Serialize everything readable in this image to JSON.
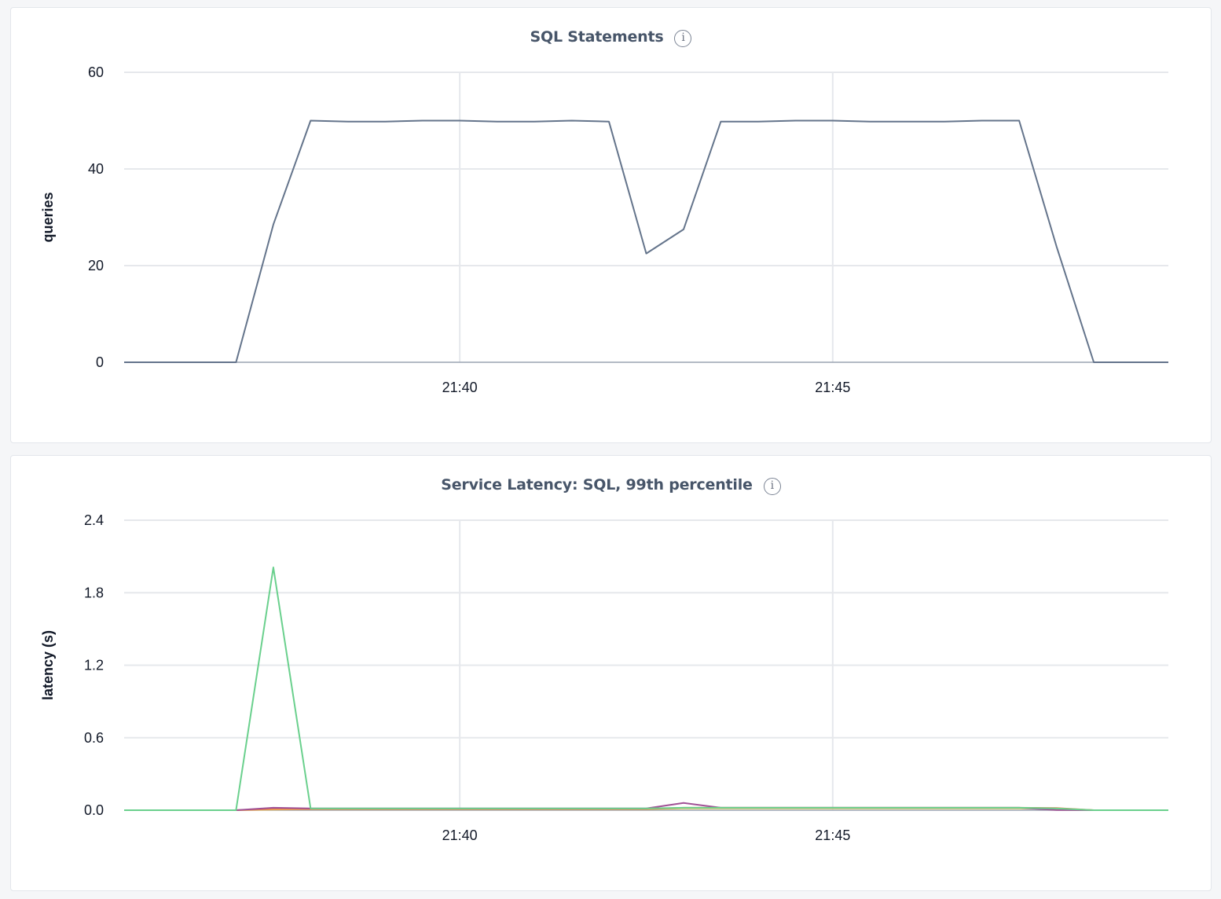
{
  "chart_data": [
    {
      "type": "line",
      "title": "SQL Statements",
      "info_icon": "info-circle-icon",
      "ylabel": "queries",
      "xlabel": "",
      "ylim": [
        0,
        60
      ],
      "yticks": [
        0,
        20,
        40,
        60
      ],
      "ytick_labels": [
        "0",
        "20",
        "40",
        "60"
      ],
      "xlim": [
        "21:35:30",
        "21:49:30"
      ],
      "xticks": [
        "21:40",
        "21:45"
      ],
      "xtick_labels": [
        "21:40",
        "21:45"
      ],
      "grid": true,
      "legend": "none",
      "series": [
        {
          "color": "#64748b",
          "x": [
            "21:35:30",
            "21:36:00",
            "21:36:30",
            "21:37:00",
            "21:37:30",
            "21:38:00",
            "21:38:30",
            "21:39:00",
            "21:39:30",
            "21:40:00",
            "21:40:30",
            "21:41:00",
            "21:41:30",
            "21:42:00",
            "21:42:30",
            "21:43:00",
            "21:43:30",
            "21:44:00",
            "21:44:30",
            "21:45:00",
            "21:45:30",
            "21:46:00",
            "21:46:30",
            "21:47:00",
            "21:47:30",
            "21:48:00",
            "21:48:30",
            "21:49:00",
            "21:49:30"
          ],
          "y": [
            0,
            0,
            0,
            0,
            28.5,
            50,
            49.8,
            49.8,
            50,
            50,
            49.8,
            49.8,
            50,
            49.8,
            22.5,
            27.5,
            49.8,
            49.8,
            50,
            50,
            49.8,
            49.8,
            49.8,
            50,
            50,
            24,
            0,
            0,
            0
          ]
        }
      ]
    },
    {
      "type": "line",
      "title": "Service Latency: SQL, 99th percentile",
      "info_icon": "info-circle-icon",
      "ylabel": "latency (s)",
      "xlabel": "",
      "ylim": [
        0,
        2.4
      ],
      "yticks": [
        0,
        0.6,
        1.2,
        1.8,
        2.4
      ],
      "ytick_labels": [
        "0.0",
        "0.6",
        "1.2",
        "1.8",
        "2.4"
      ],
      "xlim": [
        "21:35:30",
        "21:49:30"
      ],
      "xticks": [
        "21:40",
        "21:45"
      ],
      "xtick_labels": [
        "21:40",
        "21:45"
      ],
      "grid": true,
      "legend": "none",
      "series": [
        {
          "color": "#6ad08d",
          "x": [
            "21:35:30",
            "21:36:00",
            "21:36:30",
            "21:37:00",
            "21:37:30",
            "21:38:00",
            "21:38:30",
            "21:39:00",
            "21:39:30",
            "21:40:00",
            "21:40:30",
            "21:41:00",
            "21:41:30",
            "21:42:00",
            "21:42:30",
            "21:43:00",
            "21:43:30",
            "21:44:00",
            "21:44:30",
            "21:45:00",
            "21:45:30",
            "21:46:00",
            "21:46:30",
            "21:47:00",
            "21:47:30",
            "21:48:00",
            "21:48:30",
            "21:49:00",
            "21:49:30"
          ],
          "y": [
            0,
            0,
            0,
            0,
            2.01,
            0.015,
            0.015,
            0.015,
            0.015,
            0.015,
            0.015,
            0.015,
            0.015,
            0.015,
            0.015,
            0.02,
            0.02,
            0.02,
            0.02,
            0.02,
            0.02,
            0.02,
            0.02,
            0.02,
            0.02,
            0.015,
            0,
            0,
            0
          ]
        },
        {
          "color": "#a05195",
          "x": [
            "21:35:30",
            "21:36:00",
            "21:36:30",
            "21:37:00",
            "21:37:30",
            "21:38:00",
            "21:38:30",
            "21:39:00",
            "21:39:30",
            "21:40:00",
            "21:40:30",
            "21:41:00",
            "21:41:30",
            "21:42:00",
            "21:42:30",
            "21:43:00",
            "21:43:30",
            "21:44:00",
            "21:44:30",
            "21:45:00",
            "21:45:30",
            "21:46:00",
            "21:46:30",
            "21:47:00",
            "21:47:30",
            "21:48:00",
            "21:48:30",
            "21:49:00",
            "21:49:30"
          ],
          "y": [
            0,
            0,
            0,
            0,
            0.02,
            0.015,
            0.015,
            0.015,
            0.015,
            0.015,
            0.015,
            0.015,
            0.015,
            0.015,
            0.015,
            0.06,
            0.02,
            0.02,
            0.02,
            0.02,
            0.02,
            0.02,
            0.02,
            0.02,
            0.02,
            0.002,
            0,
            0,
            0
          ]
        },
        {
          "color": "#e8804a",
          "x": [
            "21:35:30",
            "21:36:00",
            "21:36:30",
            "21:37:00",
            "21:37:30",
            "21:38:00",
            "21:38:30",
            "21:39:00",
            "21:39:30",
            "21:40:00",
            "21:40:30",
            "21:41:00",
            "21:41:30",
            "21:42:00",
            "21:42:30",
            "21:43:00",
            "21:43:30",
            "21:44:00",
            "21:44:30",
            "21:45:00",
            "21:45:30",
            "21:46:00",
            "21:46:30",
            "21:47:00",
            "21:47:30",
            "21:48:00",
            "21:48:30",
            "21:49:00",
            "21:49:30"
          ],
          "y": [
            0,
            0,
            0,
            0,
            0.01,
            0.01,
            0.01,
            0.01,
            0.01,
            0.01,
            0.01,
            0.01,
            0.01,
            0.01,
            0.01,
            0.02,
            0.02,
            0.02,
            0.02,
            0.02,
            0.02,
            0.02,
            0.02,
            0.02,
            0.02,
            0.018,
            0,
            0,
            0
          ]
        },
        {
          "color": "#e6d36a",
          "x": [
            "21:35:30",
            "21:36:00",
            "21:36:30",
            "21:37:00",
            "21:37:30",
            "21:38:00",
            "21:38:30",
            "21:39:00",
            "21:39:30",
            "21:40:00",
            "21:40:30",
            "21:41:00",
            "21:41:30",
            "21:42:00",
            "21:42:30",
            "21:43:00",
            "21:43:30",
            "21:44:00",
            "21:44:30",
            "21:45:00",
            "21:45:30",
            "21:46:00",
            "21:46:30",
            "21:47:00",
            "21:47:30",
            "21:48:00",
            "21:48:30",
            "21:49:00",
            "21:49:30"
          ],
          "y": [
            0,
            0,
            0,
            0,
            0.005,
            0.008,
            0.008,
            0.008,
            0.008,
            0.008,
            0.008,
            0.008,
            0.008,
            0.008,
            0.008,
            0.015,
            0.015,
            0.015,
            0.015,
            0.015,
            0.015,
            0.015,
            0.015,
            0.015,
            0.015,
            0.01,
            0,
            0,
            0
          ]
        }
      ]
    }
  ]
}
